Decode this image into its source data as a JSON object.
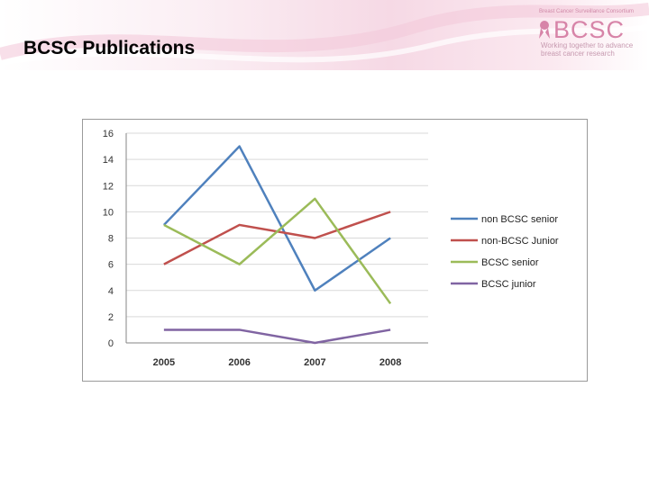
{
  "slide": {
    "title": "BCSC Publications",
    "logo": {
      "tagline_top": "Breast Cancer Surveillance Consortium",
      "name": "BCSC",
      "tagline_line1": "Working together to advance",
      "tagline_line2": "breast cancer research"
    }
  },
  "chart_data": {
    "type": "line",
    "categories": [
      "2005",
      "2006",
      "2007",
      "2008"
    ],
    "series": [
      {
        "name": "non BCSC senior",
        "values": [
          9,
          15,
          4,
          8
        ],
        "color": "#4f81bd"
      },
      {
        "name": "non-BCSC Junior",
        "values": [
          6,
          9,
          8,
          10
        ],
        "color": "#c0504d"
      },
      {
        "name": "BCSC senior",
        "values": [
          9,
          6,
          11,
          3
        ],
        "color": "#9bbb59"
      },
      {
        "name": "BCSC junior",
        "values": [
          1,
          1,
          0,
          1
        ],
        "color": "#8064a2"
      }
    ],
    "ylim": [
      0,
      16
    ],
    "yticks": [
      "0",
      "2",
      "4",
      "6",
      "8",
      "10",
      "12",
      "14",
      "16"
    ],
    "grid": true,
    "legend": "right"
  }
}
